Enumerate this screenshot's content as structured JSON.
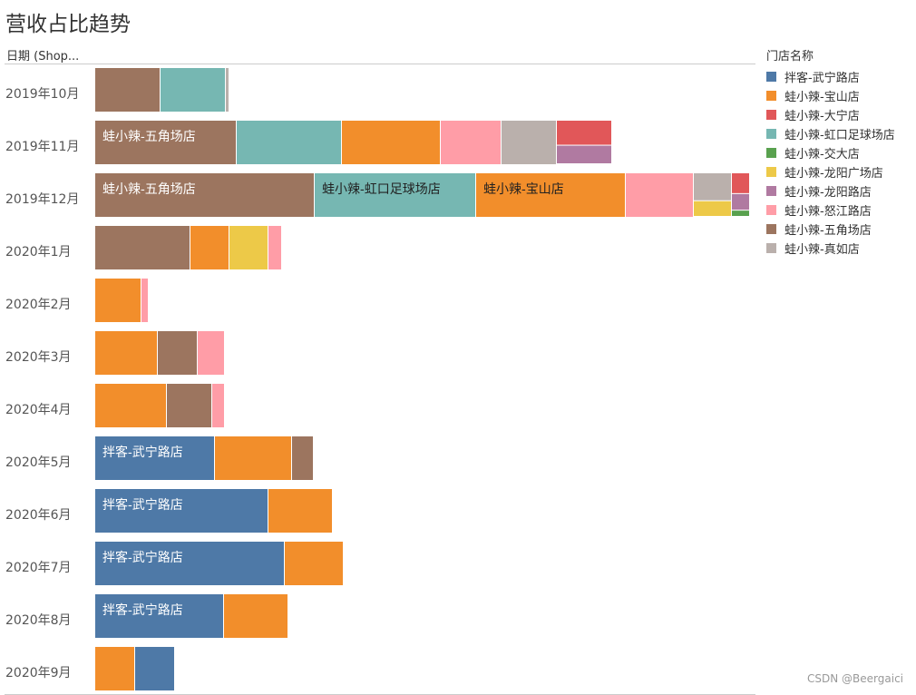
{
  "chart_data": {
    "type": "bar",
    "orientation": "horizontal",
    "stacking": "treemap-per-month",
    "title": "营收占比趋势",
    "row_header": "日期 (Shop...",
    "legend": {
      "title": "门店名称",
      "placement": "right",
      "entries": [
        {
          "name": "拌客-武宁路店",
          "color": "#4e79a7"
        },
        {
          "name": "蛙小辣-宝山店",
          "color": "#f28e2b"
        },
        {
          "name": "蛙小辣-大宁店",
          "color": "#e15759"
        },
        {
          "name": "蛙小辣-虹口足球场店",
          "color": "#76b7b2"
        },
        {
          "name": "蛙小辣-交大店",
          "color": "#59a14f"
        },
        {
          "name": "蛙小辣-龙阳广场店",
          "color": "#edc948"
        },
        {
          "name": "蛙小辣-龙阳路店",
          "color": "#b07aa1"
        },
        {
          "name": "蛙小辣-怒江路店",
          "color": "#ff9da7"
        },
        {
          "name": "蛙小辣-五角场店",
          "color": "#9c755f"
        },
        {
          "name": "蛙小辣-真如店",
          "color": "#bab0ac"
        }
      ]
    },
    "units": "relative revenue (estimated from bar lengths)",
    "categories": [
      "2019年10月",
      "2019年11月",
      "2019年12月",
      "2020年1月",
      "2020年2月",
      "2020年3月",
      "2020年4月",
      "2020年5月",
      "2020年6月",
      "2020年7月",
      "2020年8月",
      "2020年9月"
    ],
    "months": [
      {
        "label": "2019年10月",
        "segments": [
          {
            "store": "蛙小辣-五角场店",
            "value": 72
          },
          {
            "store": "蛙小辣-虹口足球场店",
            "value": 72
          },
          {
            "store": "蛙小辣-真如店",
            "value": 4
          }
        ]
      },
      {
        "label": "2019年11月",
        "segments": [
          {
            "store": "蛙小辣-五角场店",
            "value": 156,
            "label": "蛙小辣-五角场店"
          },
          {
            "store": "蛙小辣-虹口足球场店",
            "value": 116
          },
          {
            "store": "蛙小辣-宝山店",
            "value": 109
          },
          {
            "store": "蛙小辣-怒江路店",
            "value": 67
          },
          {
            "store": "蛙小辣-真如店",
            "value": 61
          },
          {
            "store": "蛙小辣-大宁店",
            "value": 35,
            "column": 1
          },
          {
            "store": "蛙小辣-龙阳路店",
            "value": 26,
            "column": 1
          }
        ]
      },
      {
        "label": "2019年12月",
        "segments": [
          {
            "store": "蛙小辣-五角场店",
            "value": 242,
            "label": "蛙小辣-五角场店"
          },
          {
            "store": "蛙小辣-虹口足球场店",
            "value": 178,
            "label": "蛙小辣-虹口足球场店"
          },
          {
            "store": "蛙小辣-宝山店",
            "value": 165,
            "label": "蛙小辣-宝山店"
          },
          {
            "store": "蛙小辣-怒江路店",
            "value": 75
          },
          {
            "store": "蛙小辣-真如店",
            "value": 32,
            "column": 1
          },
          {
            "store": "蛙小辣-龙阳广场店",
            "value": 18,
            "column": 1
          },
          {
            "store": "蛙小辣-大宁店",
            "value": 10,
            "column": 2
          },
          {
            "store": "蛙小辣-龙阳路店",
            "value": 8,
            "column": 2
          },
          {
            "store": "蛙小辣-交大店",
            "value": 3,
            "column": 2
          }
        ]
      },
      {
        "label": "2020年1月",
        "segments": [
          {
            "store": "蛙小辣-五角场店",
            "value": 105
          },
          {
            "store": "蛙小辣-宝山店",
            "value": 43
          },
          {
            "store": "蛙小辣-龙阳广场店",
            "value": 43
          },
          {
            "store": "蛙小辣-怒江路店",
            "value": 15
          }
        ]
      },
      {
        "label": "2020年2月",
        "segments": [
          {
            "store": "蛙小辣-宝山店",
            "value": 51
          },
          {
            "store": "蛙小辣-怒江路店",
            "value": 8
          }
        ]
      },
      {
        "label": "2020年3月",
        "segments": [
          {
            "store": "蛙小辣-宝山店",
            "value": 69
          },
          {
            "store": "蛙小辣-五角场店",
            "value": 44
          },
          {
            "store": "蛙小辣-怒江路店",
            "value": 30
          }
        ]
      },
      {
        "label": "2020年4月",
        "segments": [
          {
            "store": "蛙小辣-宝山店",
            "value": 79
          },
          {
            "store": "蛙小辣-五角场店",
            "value": 50
          },
          {
            "store": "蛙小辣-怒江路店",
            "value": 14
          }
        ]
      },
      {
        "label": "2020年5月",
        "segments": [
          {
            "store": "拌客-武宁路店",
            "value": 132,
            "label": "拌客-武宁路店"
          },
          {
            "store": "蛙小辣-宝山店",
            "value": 85
          },
          {
            "store": "蛙小辣-五角场店",
            "value": 24
          }
        ]
      },
      {
        "label": "2020年6月",
        "segments": [
          {
            "store": "拌客-武宁路店",
            "value": 191,
            "label": "拌客-武宁路店"
          },
          {
            "store": "蛙小辣-宝山店",
            "value": 71
          }
        ]
      },
      {
        "label": "2020年7月",
        "segments": [
          {
            "store": "拌客-武宁路店",
            "value": 209,
            "label": "拌客-武宁路店"
          },
          {
            "store": "蛙小辣-宝山店",
            "value": 65
          }
        ]
      },
      {
        "label": "2020年8月",
        "segments": [
          {
            "store": "拌客-武宁路店",
            "value": 142,
            "label": "拌客-武宁路店"
          },
          {
            "store": "蛙小辣-宝山店",
            "value": 71
          }
        ]
      },
      {
        "label": "2020年9月",
        "segments": [
          {
            "store": "蛙小辣-宝山店",
            "value": 44
          },
          {
            "store": "拌客-武宁路店",
            "value": 44
          }
        ]
      }
    ]
  },
  "watermark": "CSDN @Beergaici"
}
